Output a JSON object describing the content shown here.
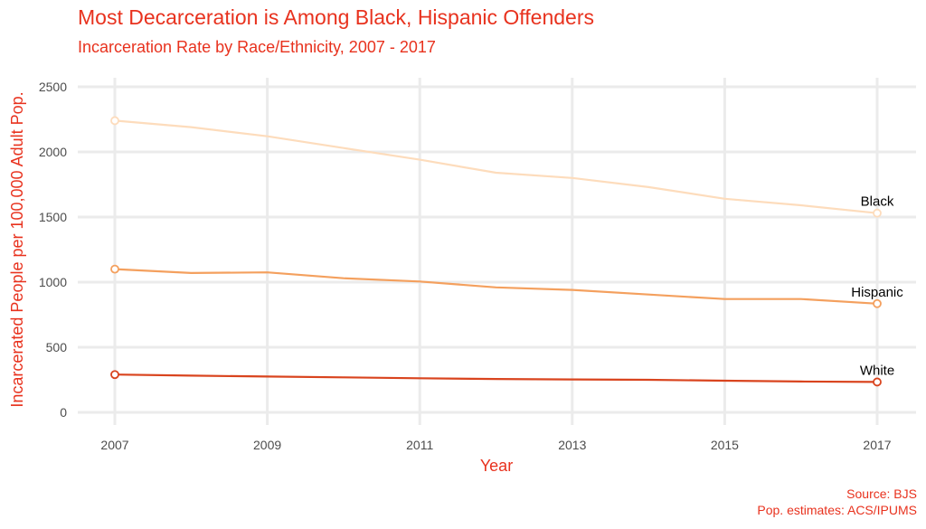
{
  "chart_data": {
    "type": "line",
    "title": "Most Decarceration is Among Black, Hispanic Offenders",
    "subtitle": "Incarceration Rate by Race/Ethnicity, 2007 - 2017",
    "xlabel": "Year",
    "ylabel": "Incarcerated People per 100,000 Adult Pop.",
    "x": [
      2007,
      2008,
      2009,
      2010,
      2011,
      2012,
      2013,
      2014,
      2015,
      2016,
      2017
    ],
    "xticks": [
      2007,
      2009,
      2011,
      2013,
      2015,
      2017
    ],
    "xlim": [
      2007,
      2017
    ],
    "yticks": [
      0,
      500,
      1000,
      1500,
      2000,
      2500
    ],
    "ylim": [
      0,
      2500
    ],
    "grid": true,
    "series": [
      {
        "name": "Black",
        "color": "#fddcbc",
        "values": [
          2240,
          2190,
          2120,
          2030,
          1940,
          1840,
          1800,
          1730,
          1640,
          1590,
          1530
        ]
      },
      {
        "name": "Hispanic",
        "color": "#f4a05e",
        "values": [
          1100,
          1070,
          1075,
          1030,
          1005,
          960,
          940,
          905,
          870,
          870,
          835
        ]
      },
      {
        "name": "White",
        "color": "#d9441e",
        "values": [
          290,
          282,
          275,
          269,
          262,
          256,
          253,
          250,
          243,
          237,
          233
        ]
      }
    ],
    "caption": [
      "Source: BJS",
      "Pop. estimates: ACS/IPUMS"
    ]
  }
}
